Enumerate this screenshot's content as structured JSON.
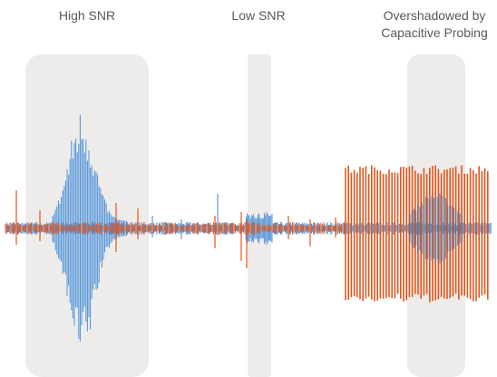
{
  "labels": {
    "high_snr": "High SNR",
    "low_snr": "Low SNR",
    "overshadowed_line1": "Overshadowed by",
    "overshadowed_line2": "Capacitive Probing"
  },
  "colors": {
    "highlight_band": "#eeeceb",
    "signal_blue": "#4a90d9",
    "probing_orange": "#e2561c",
    "label_text": "#595959"
  }
}
